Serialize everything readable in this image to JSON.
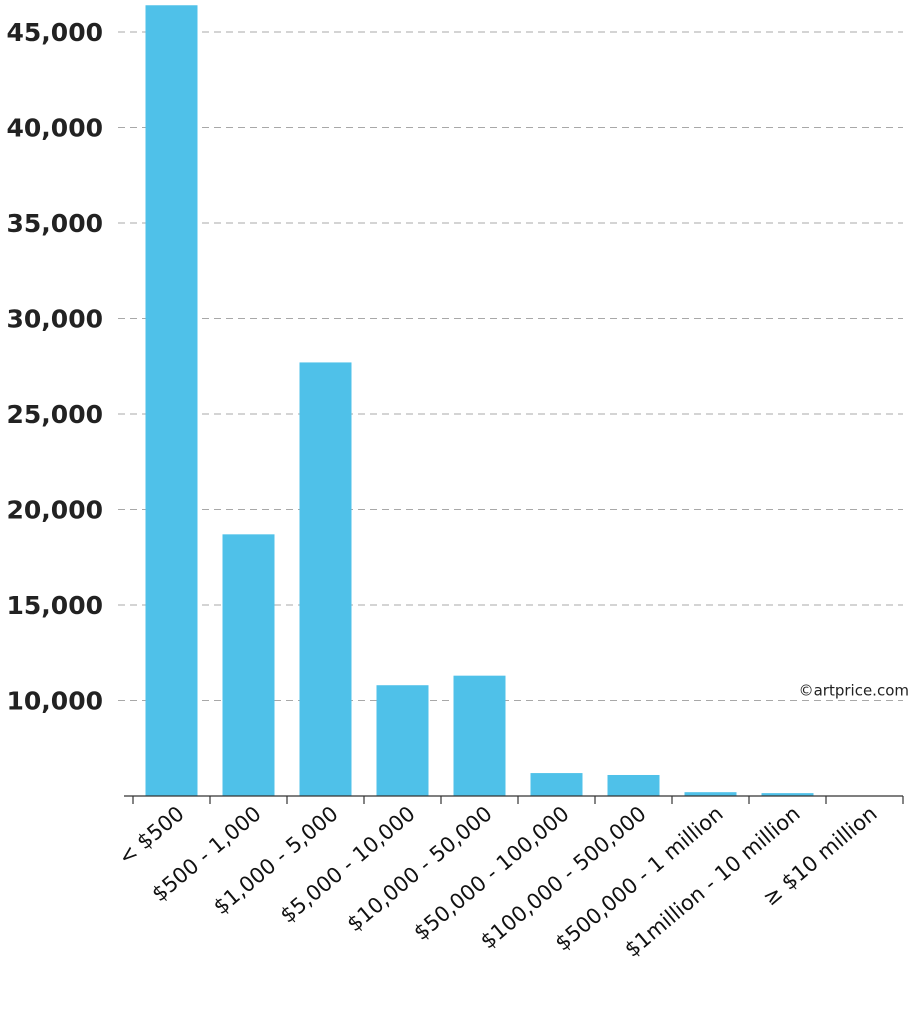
{
  "chart_data": {
    "type": "bar",
    "categories": [
      "< $500",
      "$500 - 1,000",
      "$1,000 - 5,000",
      "$5,000 - 10,000",
      "$10,000 - 50,000",
      "$50,000 - 100,000",
      "$100,000 - 500,000",
      "$500,000 - 1 million",
      "$1million - 10 million",
      "≥ $10 million"
    ],
    "values": [
      46400,
      18700,
      27700,
      10800,
      11300,
      6200,
      6100,
      5200,
      5150,
      5000
    ],
    "ylim": [
      5000,
      47000
    ],
    "yticks": [
      10000,
      15000,
      20000,
      25000,
      30000,
      35000,
      40000,
      45000
    ],
    "ytick_labels": [
      "10,000",
      "15,000",
      "20,000",
      "25,000",
      "30,000",
      "35,000",
      "40,000",
      "45,000"
    ],
    "grid": true,
    "bar_color": "#4fc1e9",
    "credit": "©artprice.com"
  }
}
